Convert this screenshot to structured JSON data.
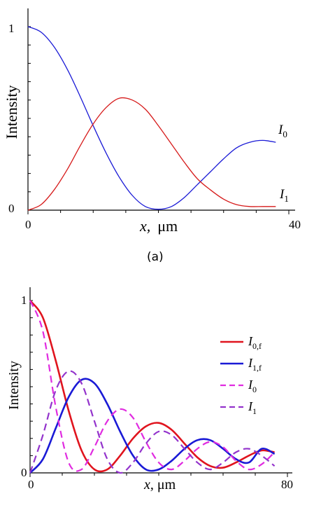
{
  "chart_data": [
    {
      "type": "line",
      "panel_label": "(a)",
      "title": "",
      "xlabel": "x,  μm",
      "xlabel_var": "x,",
      "xlabel_unit": "μm",
      "ylabel": "Intensity",
      "xlim": [
        0,
        40
      ],
      "ylim": [
        0,
        1
      ],
      "x_tick_labels": [
        "0",
        "40"
      ],
      "y_tick_labels": [
        "0",
        "1"
      ],
      "legend": "inline",
      "grid": false,
      "x": [
        0,
        2,
        4,
        6,
        8,
        10,
        12,
        14,
        16,
        18,
        20,
        22,
        24,
        26,
        28,
        30,
        32,
        34,
        36,
        38
      ],
      "series": [
        {
          "label": "I",
          "sub": "0",
          "color": "#1a1ad6",
          "dash": false,
          "values": [
            1.0,
            0.97,
            0.89,
            0.77,
            0.62,
            0.46,
            0.31,
            0.18,
            0.08,
            0.02,
            0.005,
            0.02,
            0.07,
            0.14,
            0.21,
            0.28,
            0.34,
            0.37,
            0.38,
            0.37
          ]
        },
        {
          "label": "I",
          "sub": "1",
          "color": "#d61a1a",
          "dash": false,
          "values": [
            0.0,
            0.03,
            0.11,
            0.22,
            0.35,
            0.47,
            0.56,
            0.61,
            0.6,
            0.55,
            0.46,
            0.36,
            0.26,
            0.17,
            0.11,
            0.06,
            0.03,
            0.02,
            0.02,
            0.02
          ]
        }
      ]
    },
    {
      "type": "line",
      "panel_label": "",
      "title": "",
      "xlabel": "x, μm",
      "xlabel_var": "x,",
      "xlabel_unit": "μm",
      "ylabel": "Intensity",
      "xlim": [
        0,
        80
      ],
      "ylim": [
        0,
        1
      ],
      "x_tick_labels": [
        "0",
        "80"
      ],
      "y_tick_labels": [
        "0",
        "1"
      ],
      "legend": "right",
      "grid": false,
      "x": [
        0,
        4,
        8,
        12,
        16,
        20,
        24,
        28,
        32,
        36,
        40,
        44,
        48,
        52,
        56,
        60,
        64,
        68,
        72,
        76
      ],
      "series": [
        {
          "label": "I",
          "sub": "0,f",
          "color": "#e0141e",
          "dash": false,
          "width": 2.6,
          "values": [
            1.0,
            0.9,
            0.65,
            0.36,
            0.13,
            0.02,
            0.02,
            0.1,
            0.2,
            0.27,
            0.29,
            0.25,
            0.17,
            0.09,
            0.04,
            0.03,
            0.06,
            0.1,
            0.13,
            0.12
          ]
        },
        {
          "label": "I",
          "sub": "1,f",
          "color": "#1a1ad6",
          "dash": false,
          "width": 2.6,
          "values": [
            0.0,
            0.08,
            0.26,
            0.44,
            0.54,
            0.52,
            0.4,
            0.24,
            0.1,
            0.02,
            0.02,
            0.07,
            0.14,
            0.19,
            0.19,
            0.14,
            0.08,
            0.06,
            0.14,
            0.11
          ]
        },
        {
          "label": "I",
          "sub": "0",
          "color": "#e02ce0",
          "dash": true,
          "width": 2.2,
          "values": [
            1.0,
            0.82,
            0.38,
            0.06,
            0.02,
            0.15,
            0.3,
            0.37,
            0.32,
            0.18,
            0.06,
            0.02,
            0.07,
            0.14,
            0.18,
            0.15,
            0.07,
            0.02,
            0.05,
            0.12
          ]
        },
        {
          "label": "I",
          "sub": "1",
          "color": "#9333cc",
          "dash": true,
          "width": 2.2,
          "values": [
            0.0,
            0.22,
            0.48,
            0.59,
            0.52,
            0.3,
            0.08,
            0.0,
            0.06,
            0.17,
            0.24,
            0.22,
            0.14,
            0.06,
            0.02,
            0.06,
            0.12,
            0.14,
            0.1,
            0.04
          ]
        }
      ]
    }
  ]
}
